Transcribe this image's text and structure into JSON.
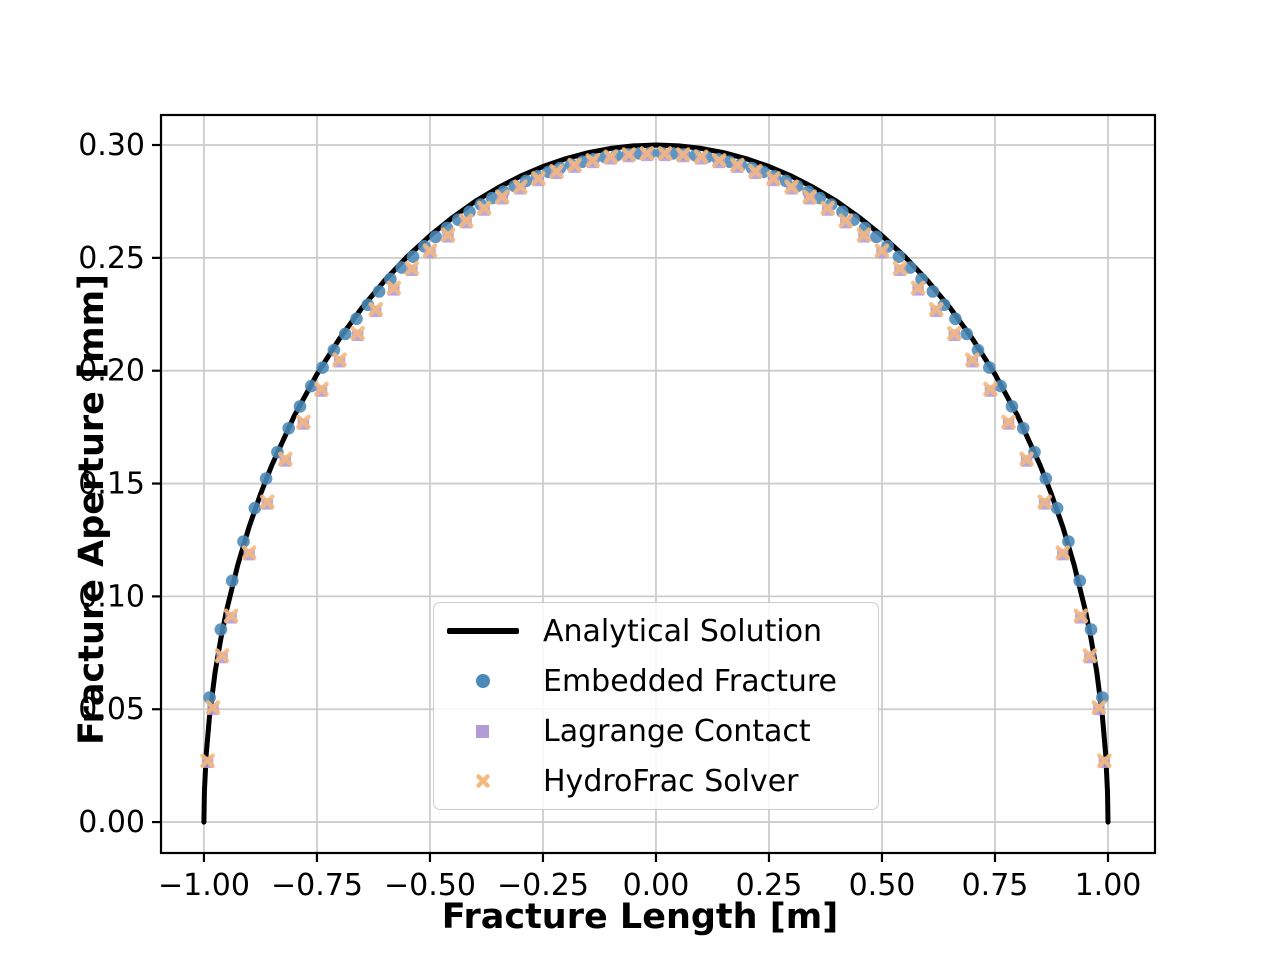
{
  "figure": {
    "background": "#ffffff",
    "grid_color": "#cccccc",
    "spine_color": "#000000",
    "tick_label_color": "#000000"
  },
  "chart_data": {
    "type": "line+scatter",
    "title": "",
    "xlabel": "Fracture Length [m]",
    "ylabel": "Fracture Aperture [mm]",
    "xlim": [
      -1.095,
      1.104
    ],
    "ylim": [
      -0.0137,
      0.3133
    ],
    "grid": true,
    "legend_position": "lower center",
    "xticks": {
      "values": [
        -1.0,
        -0.75,
        -0.5,
        -0.25,
        0.0,
        0.25,
        0.5,
        0.75,
        1.0
      ],
      "labels": [
        "−1.00",
        "−0.75",
        "−0.50",
        "−0.25",
        "0.00",
        "0.25",
        "0.50",
        "0.75",
        "1.00"
      ]
    },
    "yticks": {
      "values": [
        0.0,
        0.05,
        0.1,
        0.15,
        0.2,
        0.25,
        0.3
      ],
      "labels": [
        "0.00",
        "0.05",
        "0.10",
        "0.15",
        "0.20",
        "0.25",
        "0.30"
      ]
    },
    "series": [
      {
        "name": "Analytical Solution",
        "type": "line",
        "color": "#000000",
        "linewidth": 5,
        "x": [
          -1.0,
          -0.999,
          -0.995,
          -0.9875,
          -0.975,
          -0.9625,
          -0.95,
          -0.925,
          -0.9,
          -0.875,
          -0.85,
          -0.8,
          -0.75,
          -0.7,
          -0.65,
          -0.6,
          -0.55,
          -0.5,
          -0.45,
          -0.4,
          -0.35,
          -0.3,
          -0.25,
          -0.2,
          -0.15,
          -0.1,
          -0.05,
          0.0,
          0.05,
          0.1,
          0.15,
          0.2,
          0.25,
          0.3,
          0.35,
          0.4,
          0.45,
          0.5,
          0.55,
          0.6,
          0.65,
          0.7,
          0.75,
          0.8,
          0.85,
          0.875,
          0.9,
          0.925,
          0.95,
          0.9625,
          0.975,
          0.9875,
          0.995,
          0.999,
          1.0
        ],
        "y": [
          0.0,
          0.0134,
          0.03,
          0.0473,
          0.0667,
          0.0814,
          0.0937,
          0.114,
          0.1308,
          0.1452,
          0.158,
          0.18,
          0.1984,
          0.2142,
          0.228,
          0.24,
          0.2506,
          0.2598,
          0.2679,
          0.275,
          0.281,
          0.2862,
          0.2905,
          0.2939,
          0.2966,
          0.2985,
          0.2996,
          0.3,
          0.2996,
          0.2985,
          0.2966,
          0.2939,
          0.2905,
          0.2862,
          0.281,
          0.275,
          0.2679,
          0.2598,
          0.2506,
          0.24,
          0.228,
          0.2142,
          0.1984,
          0.18,
          0.158,
          0.1452,
          0.1308,
          0.114,
          0.0937,
          0.0814,
          0.0667,
          0.0473,
          0.03,
          0.0134,
          0.0
        ]
      },
      {
        "name": "Embedded Fracture",
        "type": "scatter",
        "marker": "circle",
        "color": "#4a89b8",
        "marker_size": 12.6,
        "x": [
          -0.9875,
          -0.9625,
          -0.9375,
          -0.9125,
          -0.8875,
          -0.8625,
          -0.8375,
          -0.8125,
          -0.7875,
          -0.7625,
          -0.7375,
          -0.7125,
          -0.6875,
          -0.6625,
          -0.6375,
          -0.6125,
          -0.5875,
          -0.5625,
          -0.5375,
          -0.5125,
          -0.4875,
          -0.4625,
          -0.4375,
          -0.4125,
          -0.3875,
          -0.3625,
          -0.3375,
          -0.3125,
          -0.2875,
          -0.2625,
          -0.2375,
          -0.2125,
          -0.1875,
          -0.1625,
          -0.1375,
          -0.1125,
          -0.0875,
          -0.0625,
          -0.0375,
          -0.0125,
          0.0125,
          0.0375,
          0.0625,
          0.0875,
          0.1125,
          0.1375,
          0.1625,
          0.1875,
          0.2125,
          0.2375,
          0.2625,
          0.2875,
          0.3125,
          0.3375,
          0.3625,
          0.3875,
          0.4125,
          0.4375,
          0.4625,
          0.4875,
          0.5125,
          0.5375,
          0.5625,
          0.5875,
          0.6125,
          0.6375,
          0.6625,
          0.6875,
          0.7125,
          0.7375,
          0.7625,
          0.7875,
          0.8125,
          0.8375,
          0.8625,
          0.8875,
          0.9125,
          0.9375,
          0.9625,
          0.9875
        ],
        "y": [
          0.0552,
          0.0853,
          0.1069,
          0.1243,
          0.1391,
          0.1522,
          0.1639,
          0.1745,
          0.1842,
          0.1932,
          0.2014,
          0.2091,
          0.2163,
          0.223,
          0.2292,
          0.2351,
          0.2406,
          0.2457,
          0.2505,
          0.2551,
          0.2593,
          0.2632,
          0.2669,
          0.2704,
          0.2736,
          0.2765,
          0.2793,
          0.2818,
          0.2841,
          0.2862,
          0.2881,
          0.2898,
          0.2913,
          0.2926,
          0.2937,
          0.2946,
          0.2954,
          0.2959,
          0.2963,
          0.2965,
          0.2965,
          0.2963,
          0.2959,
          0.2954,
          0.2946,
          0.2937,
          0.2926,
          0.2913,
          0.2898,
          0.2881,
          0.2862,
          0.2841,
          0.2818,
          0.2793,
          0.2765,
          0.2736,
          0.2704,
          0.2669,
          0.2632,
          0.2593,
          0.2551,
          0.2505,
          0.2457,
          0.2406,
          0.2351,
          0.2292,
          0.223,
          0.2163,
          0.2091,
          0.2014,
          0.1932,
          0.1842,
          0.1745,
          0.1639,
          0.1522,
          0.1391,
          0.1243,
          0.1069,
          0.0853,
          0.0552
        ]
      },
      {
        "name": "Lagrange Contact",
        "type": "scatter",
        "marker": "square",
        "color": "#b29bd6",
        "marker_size": 11.5,
        "x": [
          -0.992,
          -0.98,
          -0.96,
          -0.94,
          -0.9,
          -0.86,
          -0.82,
          -0.78,
          -0.74,
          -0.7,
          -0.66,
          -0.62,
          -0.58,
          -0.54,
          -0.5,
          -0.46,
          -0.42,
          -0.38,
          -0.34,
          -0.3,
          -0.26,
          -0.22,
          -0.18,
          -0.14,
          -0.1,
          -0.06,
          -0.02,
          0.02,
          0.06,
          0.1,
          0.14,
          0.18,
          0.22,
          0.26,
          0.3,
          0.34,
          0.38,
          0.42,
          0.46,
          0.5,
          0.54,
          0.58,
          0.62,
          0.66,
          0.7,
          0.74,
          0.78,
          0.82,
          0.86,
          0.9,
          0.94,
          0.96,
          0.98,
          0.992
        ],
        "y": [
          0.0265,
          0.05,
          0.0729,
          0.0905,
          0.1185,
          0.141,
          0.16,
          0.1764,
          0.191,
          0.204,
          0.2157,
          0.2263,
          0.2358,
          0.2445,
          0.2523,
          0.2593,
          0.2656,
          0.2712,
          0.2762,
          0.2806,
          0.2843,
          0.2875,
          0.2902,
          0.2923,
          0.2939,
          0.2949,
          0.2954,
          0.2954,
          0.2949,
          0.2939,
          0.2923,
          0.2902,
          0.2875,
          0.2843,
          0.2806,
          0.2762,
          0.2712,
          0.2656,
          0.2593,
          0.2523,
          0.2445,
          0.2358,
          0.2263,
          0.2157,
          0.204,
          0.191,
          0.1764,
          0.16,
          0.141,
          0.1185,
          0.0905,
          0.0729,
          0.05,
          0.0265
        ]
      },
      {
        "name": "HydroFrac Solver",
        "type": "scatter",
        "marker": "x",
        "color": "#f5b97d",
        "marker_size": 13,
        "x": [
          -0.992,
          -0.98,
          -0.96,
          -0.94,
          -0.9,
          -0.86,
          -0.82,
          -0.78,
          -0.74,
          -0.7,
          -0.66,
          -0.62,
          -0.58,
          -0.54,
          -0.5,
          -0.46,
          -0.42,
          -0.38,
          -0.34,
          -0.3,
          -0.26,
          -0.22,
          -0.18,
          -0.14,
          -0.1,
          -0.06,
          -0.02,
          0.02,
          0.06,
          0.1,
          0.14,
          0.18,
          0.22,
          0.26,
          0.3,
          0.34,
          0.38,
          0.42,
          0.46,
          0.5,
          0.54,
          0.58,
          0.62,
          0.66,
          0.7,
          0.74,
          0.78,
          0.82,
          0.86,
          0.9,
          0.94,
          0.96,
          0.98,
          0.992
        ],
        "y": [
          0.0272,
          0.0508,
          0.0738,
          0.0914,
          0.1194,
          0.1419,
          0.1609,
          0.1773,
          0.1919,
          0.2049,
          0.2166,
          0.2272,
          0.2367,
          0.2454,
          0.2532,
          0.2602,
          0.2665,
          0.2721,
          0.2771,
          0.2815,
          0.2852,
          0.2884,
          0.2911,
          0.2932,
          0.2948,
          0.2958,
          0.2963,
          0.2963,
          0.2958,
          0.2948,
          0.2932,
          0.2911,
          0.2884,
          0.2852,
          0.2815,
          0.2771,
          0.2721,
          0.2665,
          0.2602,
          0.2532,
          0.2454,
          0.2367,
          0.2272,
          0.2166,
          0.2049,
          0.1919,
          0.1773,
          0.1609,
          0.1419,
          0.1194,
          0.0914,
          0.0738,
          0.0508,
          0.0272
        ]
      }
    ]
  }
}
